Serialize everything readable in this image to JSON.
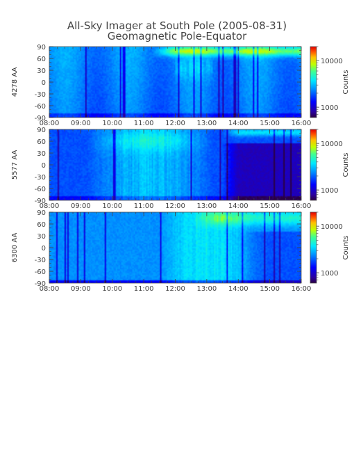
{
  "title": "All-Sky Imager at South Pole (2005-08-31)",
  "subtitle": "Geomagnetic Pole-Equator",
  "chart_data": [
    {
      "type": "heatmap",
      "ylabel": "4278 AA",
      "x_ticks": [
        "08:00",
        "09:00",
        "10:00",
        "11:00",
        "12:00",
        "13:00",
        "14:00",
        "15:00",
        "16:00"
      ],
      "x_range": [
        "08:00",
        "16:00"
      ],
      "y_ticks": [
        90,
        60,
        30,
        0,
        -30,
        -60,
        -90
      ],
      "ylim": [
        -90,
        90
      ],
      "colorbar": {
        "label": "Counts",
        "scale": "log",
        "ticks": [
          10000,
          1000
        ],
        "range": [
          600,
          20000
        ]
      },
      "features": {
        "aurora_band_start": "11:15",
        "aurora_band_y": [
          50,
          90
        ],
        "notes_onset": "12:20"
      }
    },
    {
      "type": "heatmap",
      "ylabel": "5577 AA",
      "x_ticks": [
        "08:00",
        "09:00",
        "10:00",
        "11:00",
        "12:00",
        "13:00",
        "14:00",
        "15:00",
        "16:00"
      ],
      "x_range": [
        "08:00",
        "16:00"
      ],
      "y_ticks": [
        90,
        60,
        30,
        0,
        -30,
        -60,
        -90
      ],
      "ylim": [
        -90,
        90
      ],
      "colorbar": {
        "label": "Counts",
        "scale": "log",
        "ticks": [
          10000,
          1000
        ],
        "range": [
          600,
          20000
        ]
      },
      "features": {
        "bright_period": [
          "10:00",
          "13:00"
        ],
        "dark_region_after": "13:30"
      }
    },
    {
      "type": "heatmap",
      "ylabel": "6300 AA",
      "x_ticks": [
        "08:00",
        "09:00",
        "10:00",
        "11:00",
        "12:00",
        "13:00",
        "14:00",
        "15:00",
        "16:00"
      ],
      "x_range": [
        "08:00",
        "16:00"
      ],
      "y_ticks": [
        90,
        60,
        30,
        0,
        -30,
        -60,
        -90
      ],
      "ylim": [
        -90,
        90
      ],
      "colorbar": {
        "label": "Counts",
        "scale": "log",
        "ticks": [
          10000,
          1000
        ],
        "range": [
          600,
          20000
        ]
      },
      "features": {
        "bright_period": [
          "11:30",
          "14:00"
        ],
        "bright_band_y": [
          60,
          90
        ]
      }
    }
  ]
}
